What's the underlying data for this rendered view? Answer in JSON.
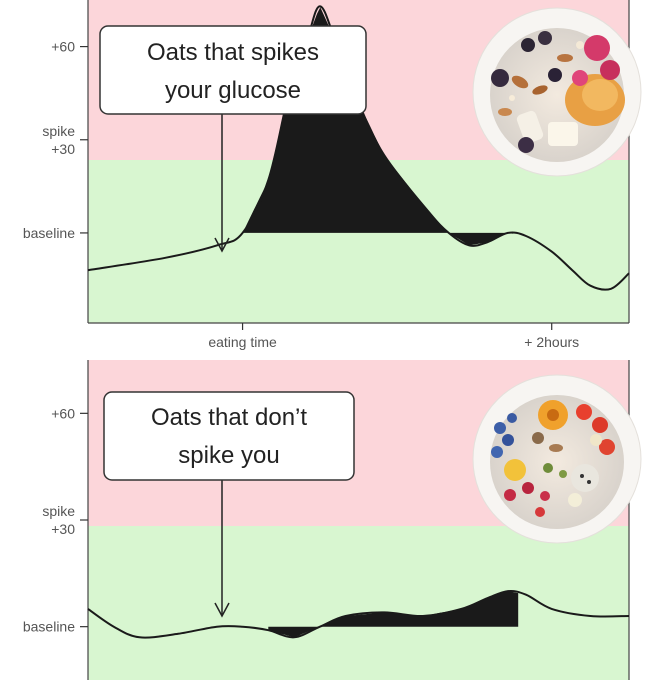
{
  "colors": {
    "spike_zone": "#fcd6da",
    "safe_zone": "#d8f6d0",
    "curve": "#1a1a1a",
    "area_fill": "#1a1a1a",
    "tick_text": "#555555",
    "axis_line": "#333333"
  },
  "chart_data": [
    {
      "type": "area",
      "y_tick_labels": [
        {
          "value": 60,
          "lines": [
            "+60"
          ]
        },
        {
          "value": 30,
          "lines": [
            "spike",
            "+30"
          ]
        },
        {
          "value": 0,
          "lines": [
            "baseline"
          ]
        }
      ],
      "x_tick_labels": [
        {
          "value": 0,
          "label": "eating time"
        },
        {
          "value": 120,
          "label": "+ 2hours"
        }
      ],
      "xlim": [
        -60,
        150
      ],
      "ylim": [
        -29,
        75
      ],
      "spike_threshold": 30,
      "callout": {
        "lines": [
          "Oats that spikes",
          "your glucose"
        ],
        "x": 0
      },
      "food_image": "oats-bowl-with-fruit-and-nuts",
      "curve": {
        "x": [
          -60,
          -30,
          -10,
          0,
          10,
          18,
          25,
          30,
          36,
          45,
          55,
          72,
          80,
          88,
          95,
          103,
          110,
          120,
          128,
          135,
          143,
          150
        ],
        "y": [
          -12,
          -8,
          -4,
          0,
          17,
          45,
          62,
          73,
          62,
          42,
          25,
          7,
          0,
          -4,
          -3,
          0,
          -1,
          -6,
          -12,
          -17,
          -18,
          -13
        ]
      },
      "fill_range": [
        0,
        105
      ]
    },
    {
      "type": "area",
      "y_tick_labels": [
        {
          "value": 60,
          "lines": [
            "+60"
          ]
        },
        {
          "value": 30,
          "lines": [
            "spike",
            "+30"
          ]
        },
        {
          "value": 0,
          "lines": [
            "baseline"
          ]
        }
      ],
      "x_tick_labels": [],
      "xlim": [
        -60,
        150
      ],
      "ylim": [
        -15,
        75
      ],
      "spike_threshold": 30,
      "callout": {
        "lines": [
          "Oats that don’t",
          "spike you"
        ],
        "x": 0
      },
      "food_image": "oats-bowl-with-berries-and-nuts",
      "curve": {
        "x": [
          -60,
          -50,
          -40,
          -25,
          -10,
          0,
          10,
          20,
          30,
          40,
          55,
          70,
          85,
          95,
          103,
          110,
          120,
          135,
          150
        ],
        "y": [
          5,
          0,
          -3,
          -2,
          0,
          0,
          -1,
          -3,
          0,
          3,
          4,
          3,
          5,
          8,
          10,
          9,
          5,
          3,
          3
        ]
      },
      "fill_range": [
        10,
        107
      ]
    }
  ]
}
